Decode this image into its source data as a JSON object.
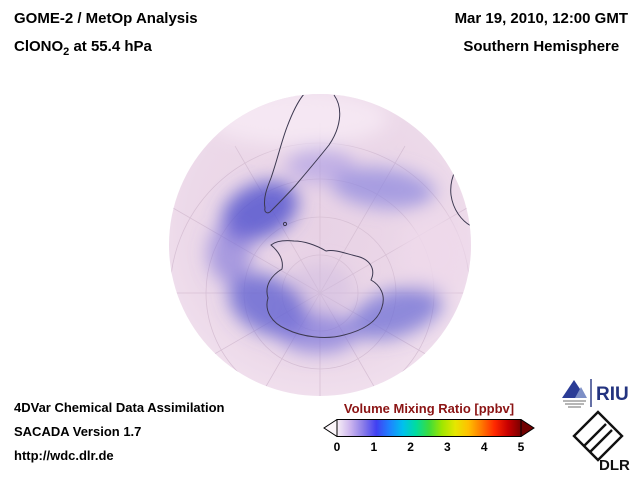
{
  "header": {
    "title": "GOME-2 / MetOp Analysis",
    "species_prefix": "ClONO",
    "species_sub": "2",
    "species_suffix": " at 55.4 hPa",
    "datetime": "Mar 19, 2010, 12:00 GMT",
    "hemisphere": "Southern Hemisphere"
  },
  "footer": {
    "assimilation": "4DVar Chemical Data Assimilation",
    "version": "SACADA Version 1.7",
    "url": "http://wdc.dlr.de"
  },
  "colorbar": {
    "title": "Volume Mixing Ratio [ppbv]",
    "ticks": [
      "0",
      "1",
      "2",
      "3",
      "4",
      "5"
    ],
    "min": 0,
    "max": 5,
    "units": "ppbv",
    "gradient": [
      "#f8f0f7",
      "#cdb6ee",
      "#8a7ce8",
      "#4040f2",
      "#1e82ff",
      "#00c0ee",
      "#00dca0",
      "#3cdc3c",
      "#a0e600",
      "#e6e600",
      "#ffc000",
      "#ff7800",
      "#ff2800",
      "#c80000",
      "#7a0000"
    ],
    "left_arrow_color": "#fbf6fa",
    "right_arrow_color": "#700000"
  },
  "map": {
    "region": "Southern Hemisphere",
    "base_color": "#ecd9e9",
    "high_value_color": "#5555cf",
    "coastline_color": "#3c3850"
  },
  "logos": {
    "riu": "RIU",
    "dlr": "DLR"
  }
}
